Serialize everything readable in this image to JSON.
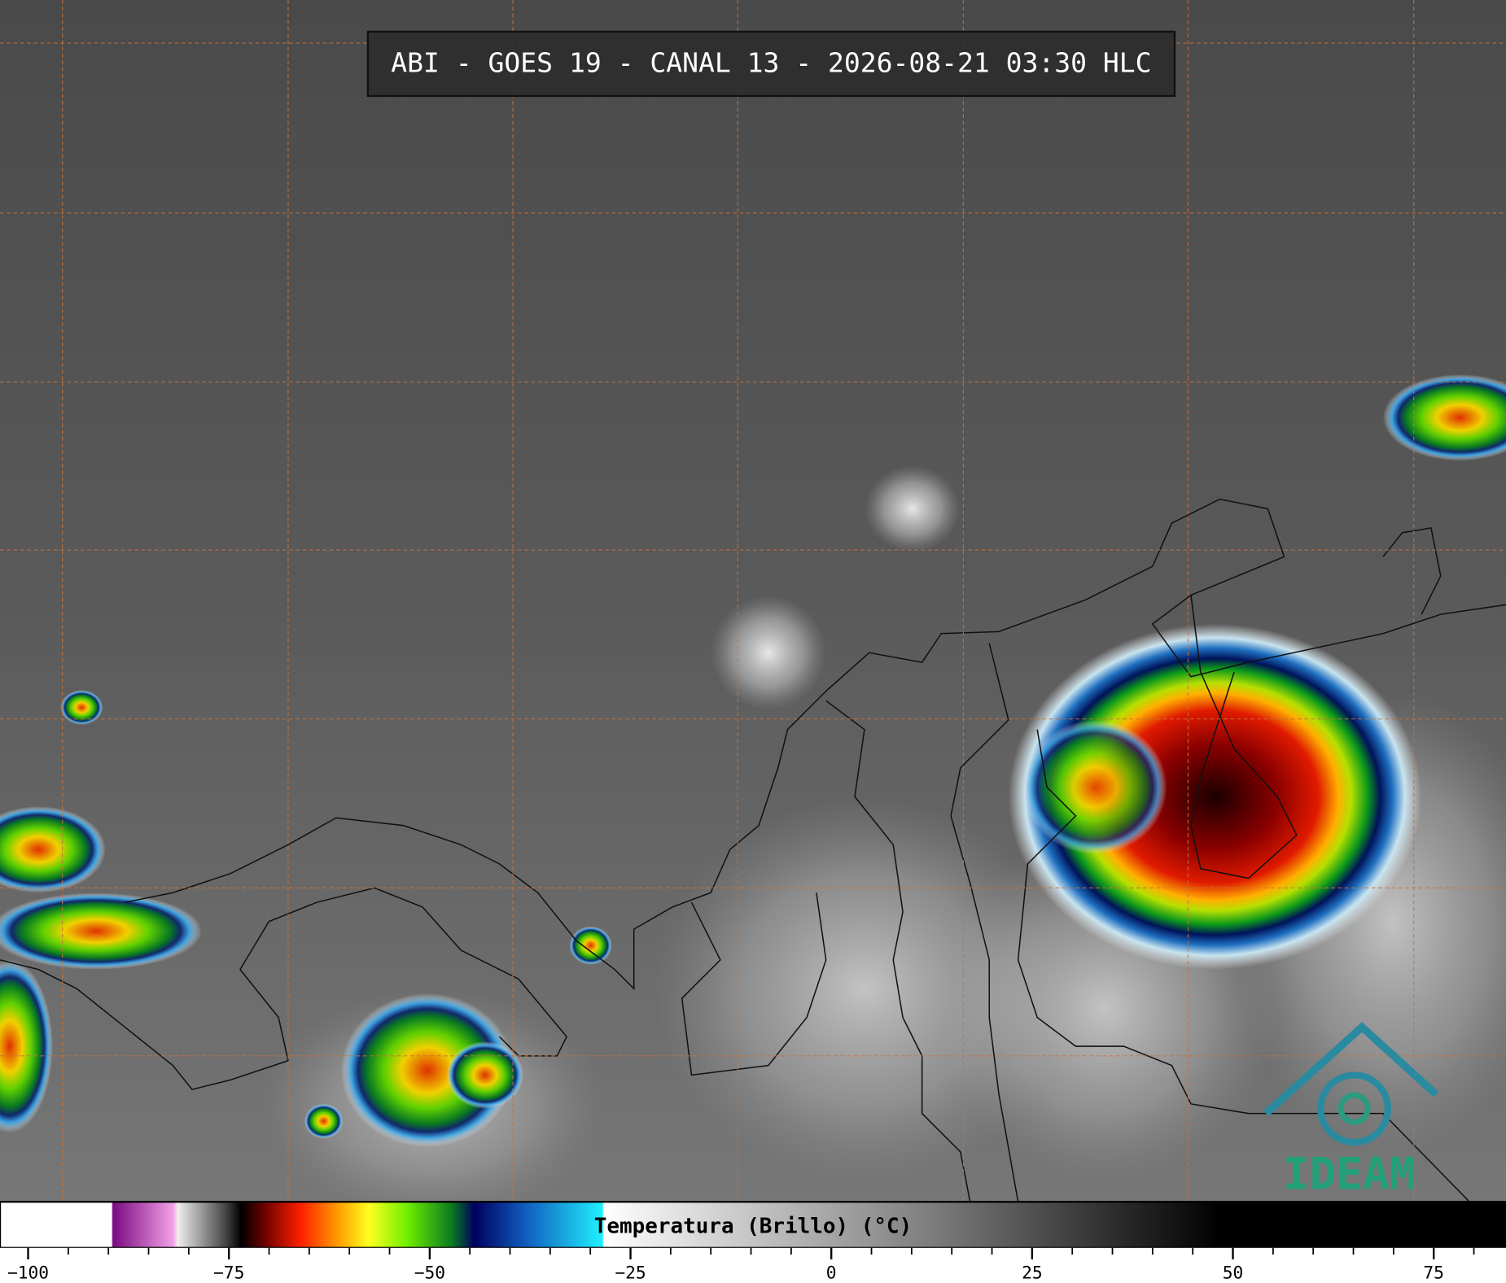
{
  "header": {
    "title": "ABI - GOES 19 - CANAL 13 - 2026-08-21 03:30 HLC"
  },
  "colorbar": {
    "label": "Temperatura (Brillo) (°C)",
    "lim": [
      -103.5,
      84
    ],
    "ticks": [
      {
        "value": -100,
        "label": "−100"
      },
      {
        "value": -75,
        "label": "−75"
      },
      {
        "value": -50,
        "label": "−50"
      },
      {
        "value": -25,
        "label": "−25"
      },
      0,
      25,
      50,
      75
    ],
    "minor_ticks": [
      -95,
      -90,
      -85,
      -80,
      -70,
      -65,
      -60,
      -55,
      -45,
      -40,
      -35,
      -30,
      -20,
      -15,
      -10,
      -5,
      5,
      10,
      15,
      20,
      30,
      35,
      40,
      45,
      55,
      60,
      65,
      70,
      80
    ]
  },
  "logo": {
    "text": "IDEAM"
  }
}
